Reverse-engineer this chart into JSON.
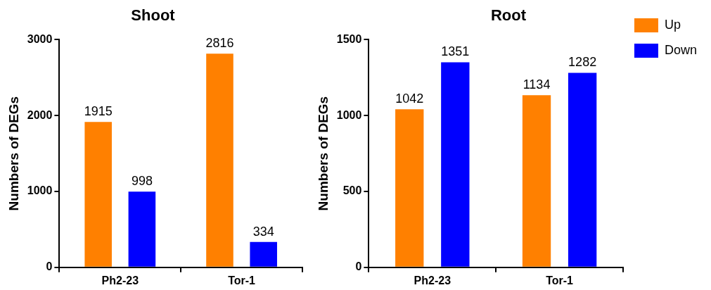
{
  "chart_data": [
    {
      "type": "bar",
      "title": "Shoot",
      "ylabel": "Numbers of DEGs",
      "categories": [
        "Ph2-23",
        "Tor-1"
      ],
      "series": [
        {
          "color": "#ff8000",
          "values": [
            1915,
            2816
          ]
        },
        {
          "color": "#0000ff",
          "values": [
            998,
            334
          ]
        }
      ],
      "ylim": [
        0,
        3000
      ],
      "yticks": [
        0,
        1000,
        2000,
        3000
      ],
      "grid": false,
      "legend": false,
      "data_labels": true
    },
    {
      "type": "bar",
      "title": "Root",
      "ylabel": "Numbers of DEGs",
      "categories": [
        "Ph2-23",
        "Tor-1"
      ],
      "series": [
        {
          "name": "Up",
          "color": "#ff8000",
          "values": [
            1042,
            1134
          ]
        },
        {
          "name": "Down",
          "color": "#0000ff",
          "values": [
            1351,
            1282
          ]
        }
      ],
      "ylim": [
        0,
        1500
      ],
      "yticks": [
        0,
        500,
        1000,
        1500
      ],
      "grid": false,
      "legend": "right",
      "data_labels": true
    }
  ]
}
